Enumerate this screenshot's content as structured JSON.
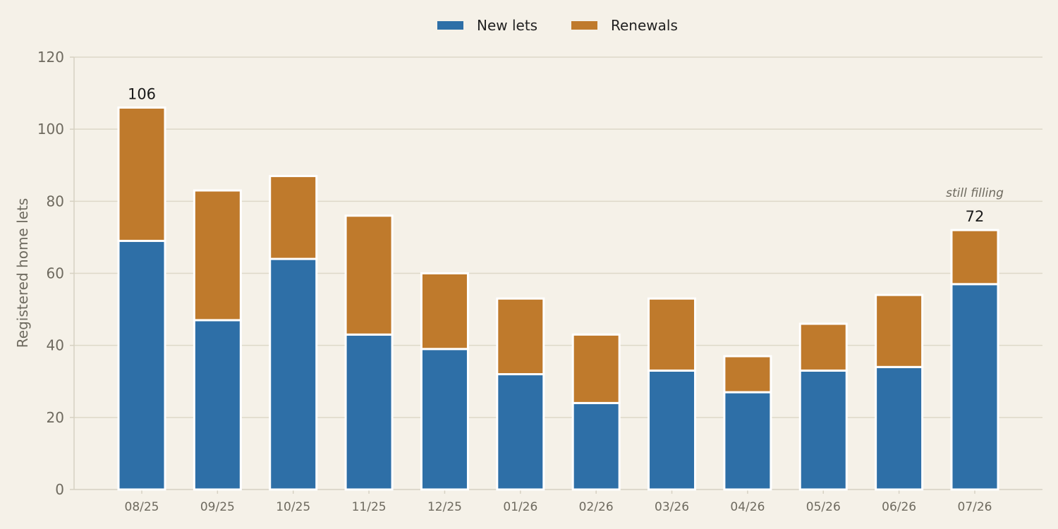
{
  "chart_data": {
    "type": "bar",
    "stacked": true,
    "categories": [
      "08/25",
      "09/25",
      "10/25",
      "11/25",
      "12/25",
      "01/26",
      "02/26",
      "03/26",
      "04/26",
      "05/26",
      "06/26",
      "07/26"
    ],
    "series": [
      {
        "name": "New lets",
        "values": [
          69,
          47,
          64,
          43,
          39,
          32,
          24,
          33,
          27,
          33,
          34,
          57
        ],
        "color": "#2e6fa7"
      },
      {
        "name": "Renewals",
        "values": [
          37,
          36,
          23,
          33,
          21,
          21,
          19,
          20,
          10,
          13,
          20,
          15
        ],
        "color": "#bf7a2c"
      }
    ],
    "ylabel": "Registered home lets",
    "xlabel": "",
    "ylim": [
      0,
      120
    ],
    "yticks": [
      "0",
      "20",
      "40",
      "60",
      "80",
      "100",
      "120"
    ],
    "grid": true,
    "legend_position": "top-center",
    "annotations": [
      {
        "category": "08/25",
        "text": "106"
      },
      {
        "category": "07/26",
        "text": "72",
        "note": "still filling"
      }
    ]
  }
}
